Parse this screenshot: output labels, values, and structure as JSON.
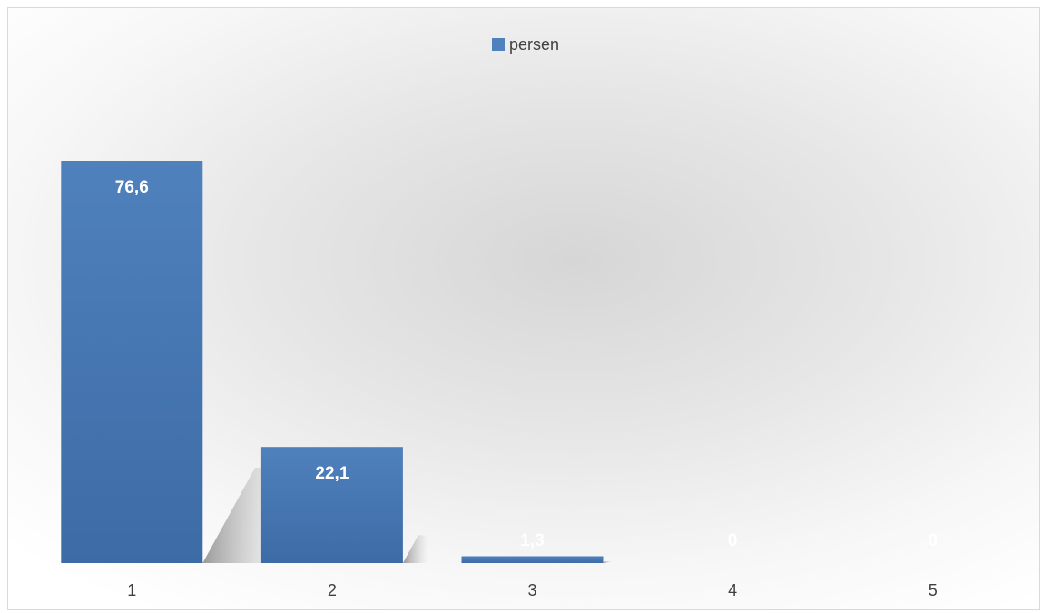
{
  "chart_data": {
    "type": "bar",
    "categories": [
      "1",
      "2",
      "3",
      "4",
      "5"
    ],
    "series": [
      {
        "name": "persen",
        "values": [
          76.6,
          22.1,
          1.3,
          0,
          0
        ]
      }
    ],
    "data_labels": [
      "76,6",
      "22,1",
      "1,3",
      "0",
      "0"
    ],
    "title": "",
    "xlabel": "",
    "ylabel": "",
    "ylim": [
      0,
      76.6
    ],
    "grid": false,
    "legend_position": "top",
    "colors": {
      "bar_top": "#4f81bd",
      "bar_bottom": "#3a6aa3",
      "label": "#ffffff"
    }
  }
}
